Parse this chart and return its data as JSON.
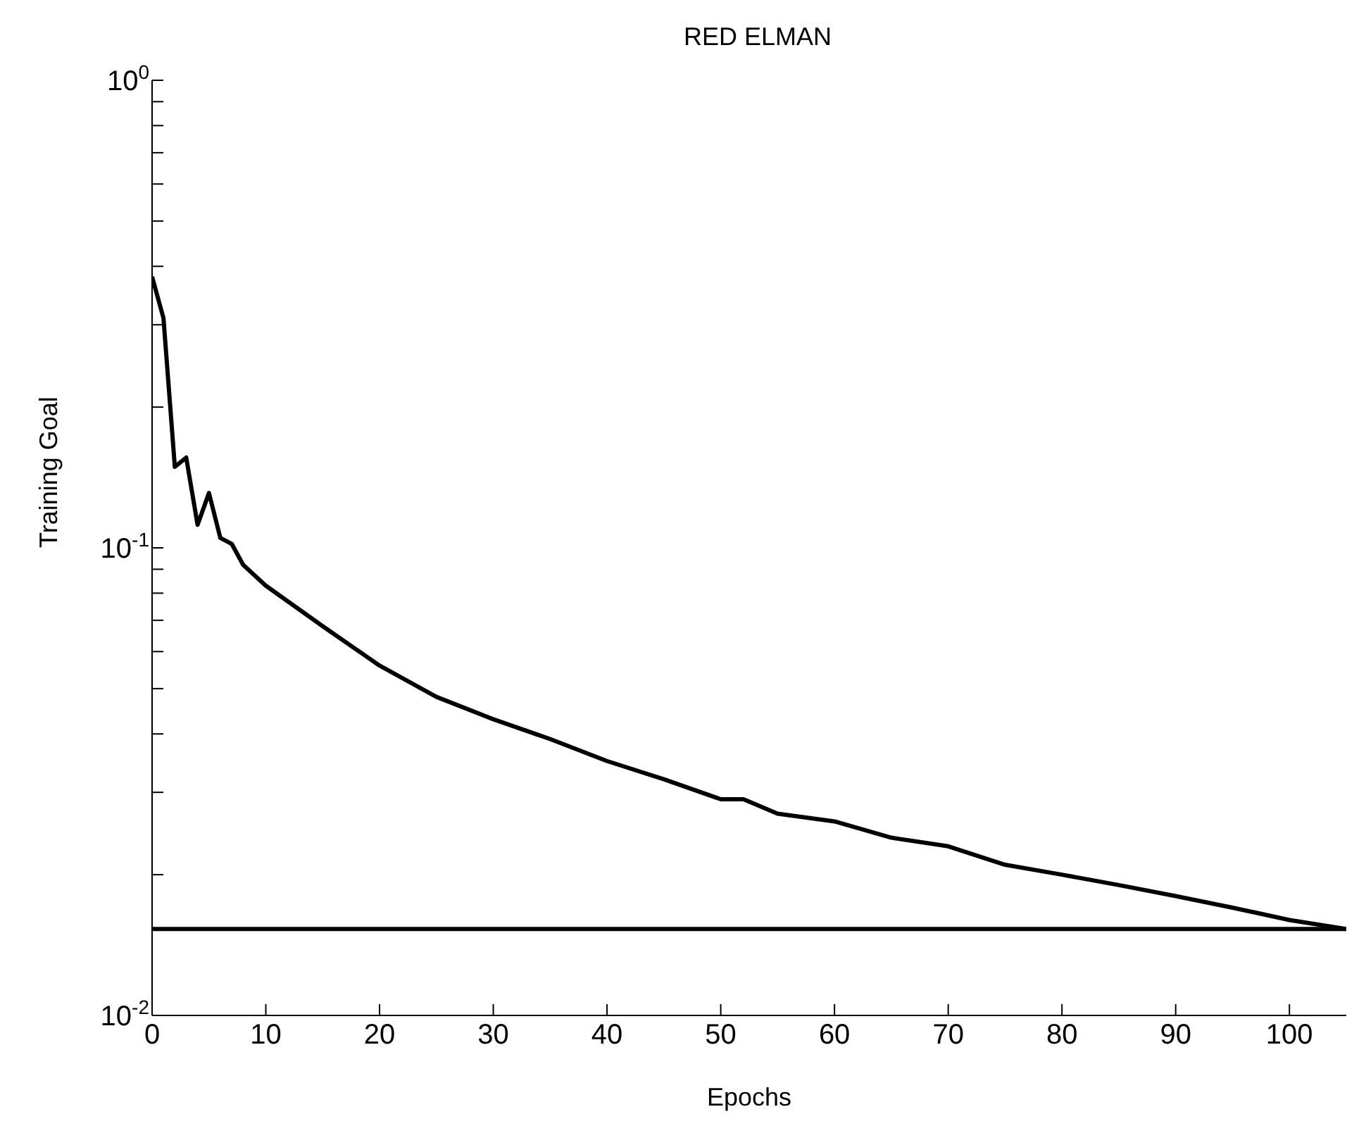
{
  "chart_data": {
    "type": "line",
    "title": "RED ELMAN",
    "xlabel": "Epochs",
    "ylabel": "Training                        Goal",
    "log": "y",
    "x": [
      0,
      1,
      2,
      3,
      4,
      5,
      6,
      7,
      8,
      10,
      15,
      20,
      25,
      30,
      35,
      40,
      45,
      50,
      52,
      55,
      60,
      65,
      70,
      75,
      80,
      85,
      90,
      95,
      100,
      105
    ],
    "series": [
      {
        "color": "#000000",
        "values": [
          0.38,
          0.31,
          0.149,
          0.156,
          0.112,
          0.131,
          0.105,
          0.102,
          0.092,
          0.083,
          0.068,
          0.056,
          0.048,
          0.043,
          0.039,
          0.035,
          0.032,
          0.029,
          0.029,
          0.027,
          0.026,
          0.024,
          0.023,
          0.021,
          0.02,
          0.019,
          0.018,
          0.017,
          0.016,
          0.0153
        ]
      }
    ],
    "xlim": [
      0,
      105
    ],
    "xticks": [
      0,
      10,
      20,
      30,
      40,
      50,
      60,
      70,
      80,
      90,
      100
    ],
    "ylim": [
      0.01,
      1
    ],
    "yticks": [
      {
        "value": 0.01,
        "label": "10$^{-2}$"
      },
      {
        "value": 0.02,
        "label": null
      },
      {
        "value": 0.03,
        "label": null
      },
      {
        "value": 0.04,
        "label": null
      },
      {
        "value": 0.05,
        "label": null
      },
      {
        "value": 0.06,
        "label": null
      },
      {
        "value": 0.07,
        "label": null
      },
      {
        "value": 0.08,
        "label": null
      },
      {
        "value": 0.09,
        "label": null
      },
      {
        "value": 0.1,
        "label": "10$^{-1}$"
      },
      {
        "value": 0.2,
        "label": null
      },
      {
        "value": 0.3,
        "label": null
      },
      {
        "value": 0.4,
        "label": null
      },
      {
        "value": 0.5,
        "label": null
      },
      {
        "value": 0.6,
        "label": null
      },
      {
        "value": 0.7,
        "label": null
      },
      {
        "value": 0.8,
        "label": null
      },
      {
        "value": 0.9,
        "label": null
      },
      {
        "value": 1,
        "label": "10$^{0}$"
      }
    ],
    "ref_lines": [
      {
        "axis": "y",
        "value": 0.0153,
        "color": "#000000"
      }
    ],
    "grid": false,
    "legend": false,
    "marker": "none",
    "line_style": "solid"
  }
}
